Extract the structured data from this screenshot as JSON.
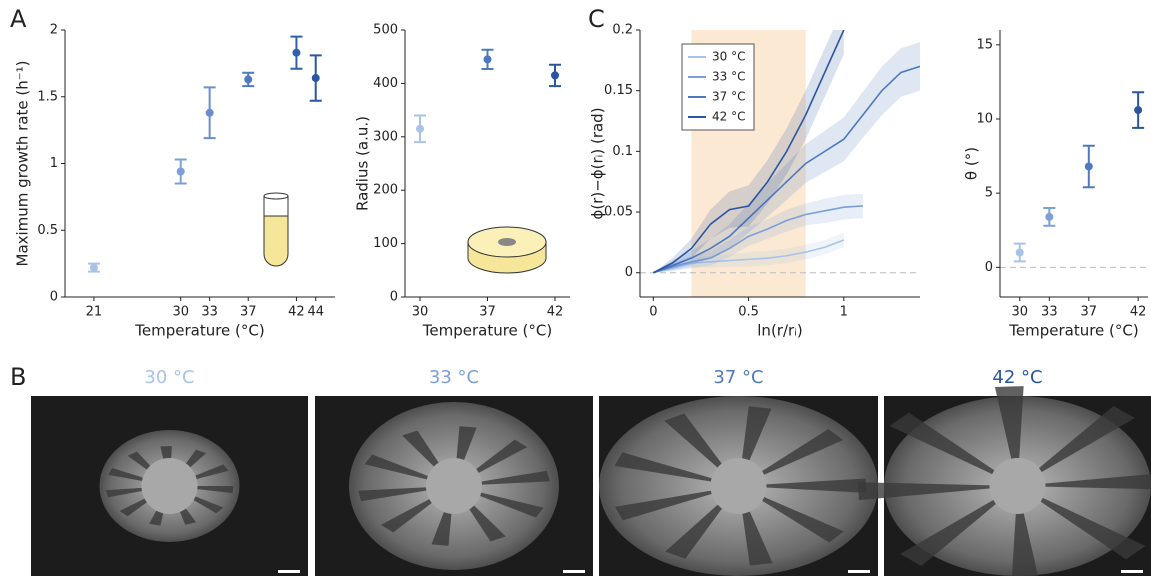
{
  "panel_labels": [
    "A",
    "B",
    "C"
  ],
  "images": {
    "labels": [
      "30 °C",
      "33 °C",
      "37 °C",
      "42 °C"
    ],
    "colors": [
      "#a9c3e6",
      "#7c9fd6",
      "#4f78bf",
      "#2a559f"
    ]
  },
  "chart_data": [
    {
      "type": "errorbar",
      "ylabel": "Maximum growth rate (h⁻¹)",
      "xlabel": "Temperature (°C)",
      "x": [
        21,
        30,
        33,
        37,
        42,
        44
      ],
      "values": [
        0.22,
        0.94,
        1.38,
        1.63,
        1.83,
        1.64
      ],
      "errors": [
        0.03,
        0.09,
        0.19,
        0.05,
        0.12,
        0.17
      ],
      "colors": [
        "#a9c3e6",
        "#7c9fd6",
        "#6a8fcf",
        "#4f78bf",
        "#2f5fad",
        "#2a559f"
      ],
      "xlim": [
        18,
        46
      ],
      "xticks": [
        21,
        30,
        33,
        37,
        42,
        44
      ],
      "ylim": [
        0,
        2
      ],
      "yticks": [
        0,
        0.5,
        1,
        1.5,
        2
      ]
    },
    {
      "type": "errorbar",
      "ylabel": "Radius (a.u.)",
      "xlabel": "Temperature (°C)",
      "categories": [
        "30",
        "37",
        "42"
      ],
      "values": [
        315,
        445,
        415
      ],
      "errors": [
        25,
        18,
        20
      ],
      "colors": [
        "#a9c3e6",
        "#4f78bf",
        "#2a559f"
      ],
      "ylim": [
        0,
        500
      ],
      "yticks": [
        0,
        100,
        200,
        300,
        400,
        500
      ]
    },
    {
      "type": "line",
      "ylabel": "ϕ(r)−ϕ(rᵢ) (rad)",
      "xlabel": "ln(r/rᵢ)",
      "shaded_xrange": [
        0.2,
        0.8
      ],
      "xlim": [
        -0.07,
        1.4
      ],
      "xticks": [
        0,
        0.5,
        1
      ],
      "ylim": [
        -0.02,
        0.2
      ],
      "yticks": [
        0,
        0.05,
        0.1,
        0.15,
        0.2
      ],
      "series": [
        {
          "name": "30 °C",
          "color": "#a9c3e6",
          "x": [
            0,
            0.1,
            0.2,
            0.3,
            0.4,
            0.5,
            0.6,
            0.7,
            0.8,
            0.9,
            1.0
          ],
          "values": [
            0,
            0.004,
            0.008,
            0.009,
            0.01,
            0.011,
            0.012,
            0.014,
            0.017,
            0.021,
            0.027
          ],
          "errors": [
            0,
            0.003,
            0.004,
            0.005,
            0.005,
            0.006,
            0.006,
            0.006,
            0.006,
            0.006,
            0.006
          ]
        },
        {
          "name": "33 °C",
          "color": "#7c9fd6",
          "x": [
            0,
            0.1,
            0.2,
            0.3,
            0.4,
            0.5,
            0.6,
            0.7,
            0.8,
            0.9,
            1.0,
            1.1
          ],
          "values": [
            0,
            0.005,
            0.009,
            0.012,
            0.02,
            0.03,
            0.036,
            0.043,
            0.048,
            0.051,
            0.054,
            0.055
          ],
          "errors": [
            0,
            0.003,
            0.005,
            0.006,
            0.007,
            0.008,
            0.008,
            0.009,
            0.009,
            0.01,
            0.01,
            0.01
          ]
        },
        {
          "name": "37 °C",
          "color": "#4f78bf",
          "x": [
            0,
            0.1,
            0.2,
            0.3,
            0.4,
            0.5,
            0.6,
            0.7,
            0.8,
            0.9,
            1.0,
            1.1,
            1.2,
            1.3,
            1.4
          ],
          "values": [
            0,
            0.006,
            0.012,
            0.02,
            0.03,
            0.045,
            0.06,
            0.075,
            0.09,
            0.1,
            0.11,
            0.13,
            0.15,
            0.165,
            0.17
          ],
          "errors": [
            0,
            0.004,
            0.006,
            0.008,
            0.01,
            0.012,
            0.014,
            0.015,
            0.016,
            0.017,
            0.018,
            0.019,
            0.02,
            0.02,
            0.02
          ]
        },
        {
          "name": "42 °C",
          "color": "#2a559f",
          "x": [
            0,
            0.1,
            0.2,
            0.3,
            0.4,
            0.5,
            0.6,
            0.7,
            0.8,
            0.9,
            1.0
          ],
          "values": [
            0,
            0.008,
            0.02,
            0.04,
            0.052,
            0.055,
            0.075,
            0.1,
            0.13,
            0.165,
            0.2
          ],
          "errors": [
            0,
            0.004,
            0.008,
            0.012,
            0.015,
            0.017,
            0.018,
            0.019,
            0.02,
            0.02,
            0.02
          ]
        }
      ]
    },
    {
      "type": "errorbar",
      "ylabel": "θ (°)",
      "xlabel": "Temperature (°C)",
      "x": [
        30,
        33,
        37,
        42
      ],
      "values": [
        1,
        3.4,
        6.8,
        10.6
      ],
      "errors": [
        0.6,
        0.6,
        1.4,
        1.2
      ],
      "colors": [
        "#a9c3e6",
        "#7c9fd6",
        "#4f78bf",
        "#2a559f"
      ],
      "xlim": [
        28,
        43
      ],
      "xticks": [
        30,
        33,
        37,
        42
      ],
      "ylim": [
        -2,
        16
      ],
      "yticks": [
        0,
        5,
        10,
        15
      ],
      "zero_line": true
    }
  ]
}
